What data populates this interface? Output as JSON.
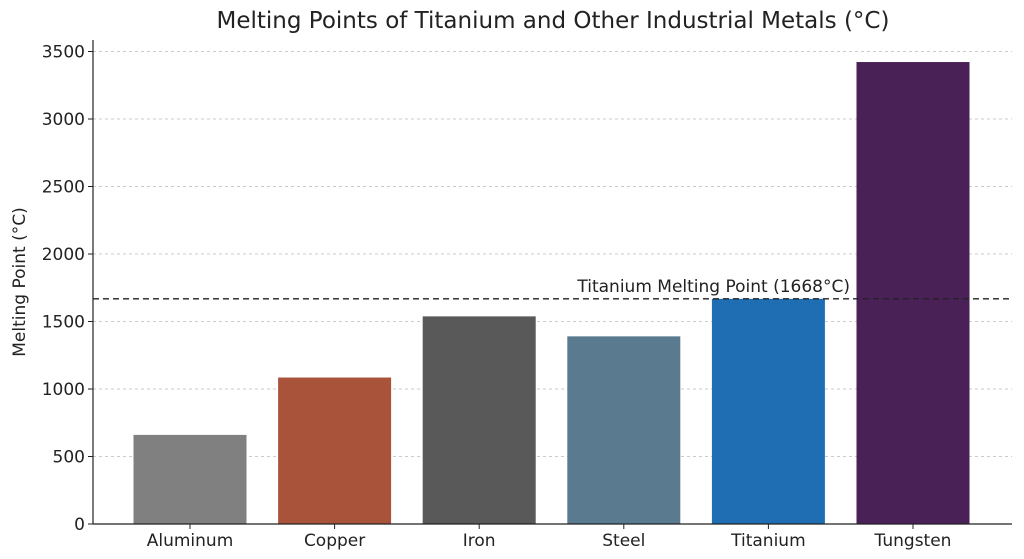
{
  "chart_data": {
    "type": "bar",
    "title": "Melting Points of Titanium and Other Industrial Metals (°C)",
    "xlabel": "",
    "ylabel": "Melting Point (°C)",
    "ylim": [
      0,
      3600
    ],
    "yticks": [
      0,
      500,
      1000,
      1500,
      2000,
      2500,
      3000,
      3500
    ],
    "grid": "horizontal dashed",
    "categories": [
      "Aluminum",
      "Copper",
      "Iron",
      "Steel",
      "Titanium",
      "Tungsten"
    ],
    "values": [
      660,
      1085,
      1538,
      1390,
      1668,
      3422
    ],
    "colors": [
      "#808080",
      "#a9533a",
      "#595959",
      "#5a7a90",
      "#1f6db3",
      "#4a2157"
    ],
    "reference_line": {
      "value": 1668,
      "label": "Titanium Melting Point (1668°C)",
      "style": "dashed",
      "color": "#222222"
    }
  }
}
